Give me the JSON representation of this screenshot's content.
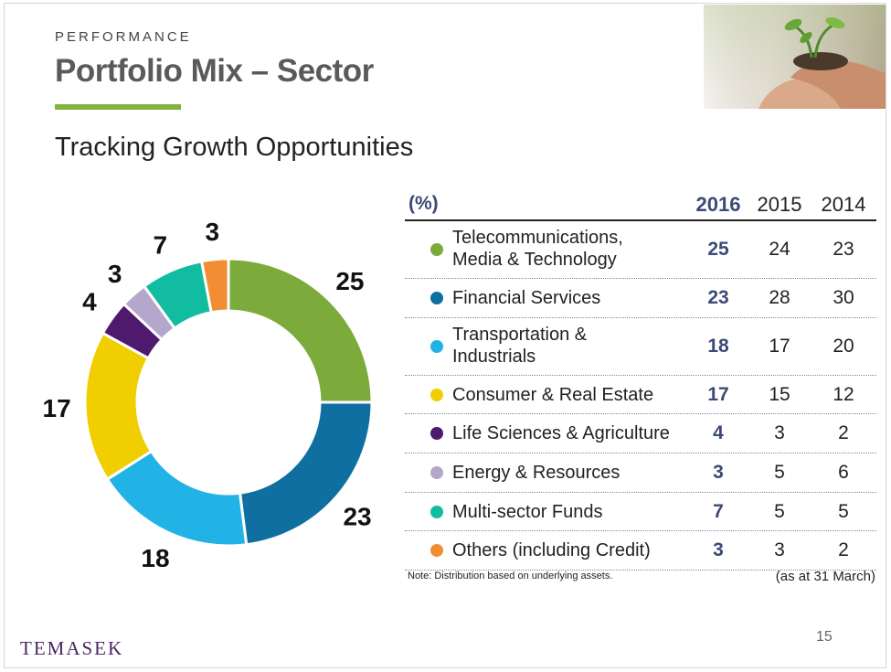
{
  "header": {
    "kicker": "PERFORMANCE",
    "title": "Portfolio Mix – Sector",
    "subtitle": "Tracking Growth Opportunities"
  },
  "table": {
    "unit_label": "(%)",
    "years": [
      "2016",
      "2015",
      "2014"
    ],
    "note": "Note: Distribution based on underlying assets.",
    "as_at": "(as at 31 March)"
  },
  "colors": {
    "accent_bar": "#82b33a",
    "year_highlight": "#3c4a75"
  },
  "chart_data": {
    "type": "pie",
    "donut": true,
    "categories": [
      "Telecommunications, Media & Technology",
      "Financial Services",
      "Transportation & Industrials",
      "Consumer & Real Estate",
      "Life Sciences & Agriculture",
      "Energy & Resources",
      "Multi-sector Funds",
      "Others (including Credit)"
    ],
    "colors": [
      "#7cab3c",
      "#0f6fa0",
      "#22b3e6",
      "#f0ce00",
      "#4f1a6e",
      "#b5a7cc",
      "#12bca1",
      "#f28d33"
    ],
    "series": [
      {
        "name": "2016",
        "values": [
          25,
          23,
          18,
          17,
          4,
          3,
          7,
          3
        ]
      },
      {
        "name": "2015",
        "values": [
          24,
          28,
          17,
          15,
          3,
          5,
          5,
          3
        ]
      },
      {
        "name": "2014",
        "values": [
          23,
          30,
          20,
          12,
          2,
          6,
          5,
          2
        ]
      }
    ],
    "chart_series": "2016",
    "data_labels": [
      "25",
      "23",
      "18",
      "17",
      "4",
      "3",
      "7",
      "3"
    ]
  },
  "footer": {
    "page_number": "15",
    "logo": "TEMASEK"
  }
}
